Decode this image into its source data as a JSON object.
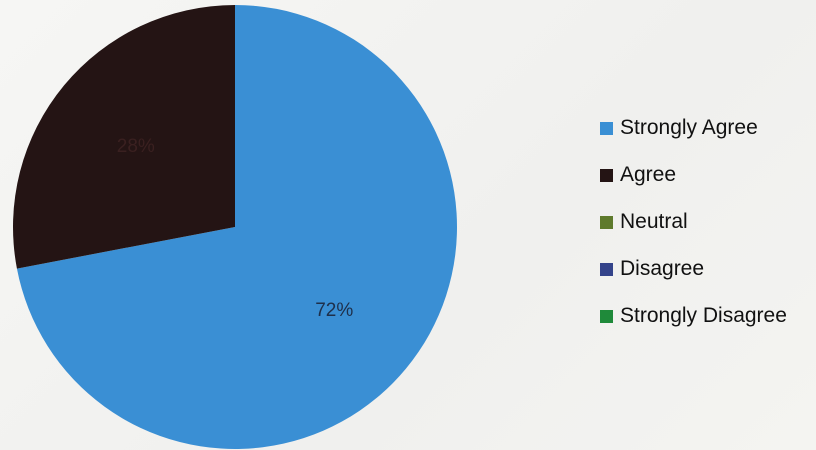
{
  "chart_data": {
    "type": "pie",
    "title": "",
    "categories": [
      "Strongly Agree",
      "Agree",
      "Neutral",
      "Disagree",
      "Strongly Disagree"
    ],
    "values": [
      72,
      28,
      0,
      0,
      0
    ],
    "labels": [
      "72%",
      "28%",
      "",
      "",
      ""
    ],
    "colors": [
      "#3a8fd4",
      "#241414",
      "#5e7a2c",
      "#34438a",
      "#1f8a3a"
    ],
    "legend_position": "right"
  }
}
